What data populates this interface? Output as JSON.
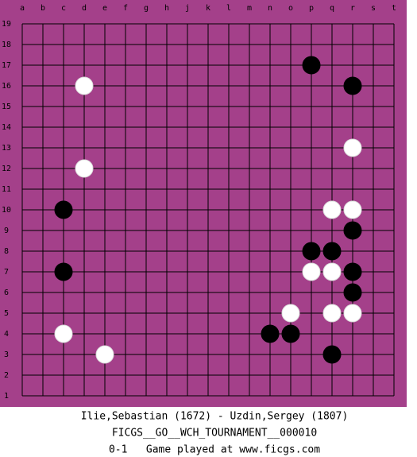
{
  "board": {
    "columns": [
      "a",
      "b",
      "c",
      "d",
      "e",
      "f",
      "g",
      "h",
      "j",
      "k",
      "l",
      "m",
      "n",
      "o",
      "p",
      "q",
      "r",
      "s",
      "t"
    ],
    "rows": [
      "19",
      "18",
      "17",
      "16",
      "15",
      "14",
      "13",
      "12",
      "11",
      "10",
      "9",
      "8",
      "7",
      "6",
      "5",
      "4",
      "3",
      "2",
      "1"
    ],
    "stones": [
      {
        "color": "black",
        "point": "p17"
      },
      {
        "color": "white",
        "point": "d16"
      },
      {
        "color": "black",
        "point": "r16"
      },
      {
        "color": "white",
        "point": "r13"
      },
      {
        "color": "white",
        "point": "d12"
      },
      {
        "color": "black",
        "point": "c10"
      },
      {
        "color": "white",
        "point": "q10"
      },
      {
        "color": "white",
        "point": "r10"
      },
      {
        "color": "black",
        "point": "r9"
      },
      {
        "color": "black",
        "point": "p8"
      },
      {
        "color": "black",
        "point": "q8"
      },
      {
        "color": "white",
        "point": "p7"
      },
      {
        "color": "white",
        "point": "q7"
      },
      {
        "color": "black",
        "point": "r7"
      },
      {
        "color": "black",
        "point": "c7"
      },
      {
        "color": "black",
        "point": "r6"
      },
      {
        "color": "white",
        "point": "o5"
      },
      {
        "color": "white",
        "point": "q5"
      },
      {
        "color": "white",
        "point": "r5"
      },
      {
        "color": "black",
        "point": "n4"
      },
      {
        "color": "black",
        "point": "o4"
      },
      {
        "color": "white",
        "point": "c4"
      },
      {
        "color": "white",
        "point": "e3"
      },
      {
        "color": "black",
        "point": "q3"
      }
    ]
  },
  "footer": {
    "players": "Ilie,Sebastian (1672) - Uzdin,Sergey (1807)",
    "event": "FICGS__GO__WCH_TOURNAMENT__000010",
    "result": "0-1   Game played at www.ficgs.com"
  }
}
